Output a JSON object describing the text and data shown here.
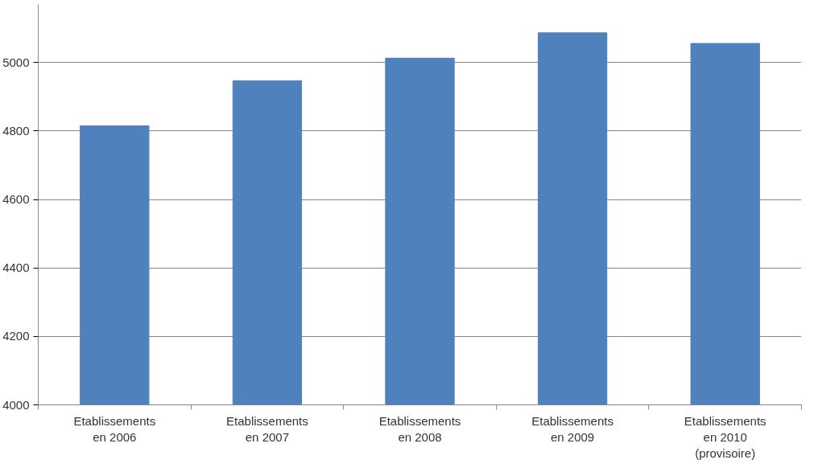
{
  "chart_data": {
    "type": "bar",
    "categories": [
      "Etablissements\nen 2006",
      "Etablissements\nen 2007",
      "Etablissements\nen 2008",
      "Etablissements\nen 2009",
      "Etablissements\nen 2010\n(provisoire)"
    ],
    "values": [
      4815,
      4947,
      5013,
      5087,
      5056
    ],
    "color": "#4f81bd",
    "ylim": [
      4000,
      5170
    ],
    "yticks": [
      4000,
      4200,
      4400,
      4600,
      4800,
      5000
    ],
    "grid": "y"
  }
}
